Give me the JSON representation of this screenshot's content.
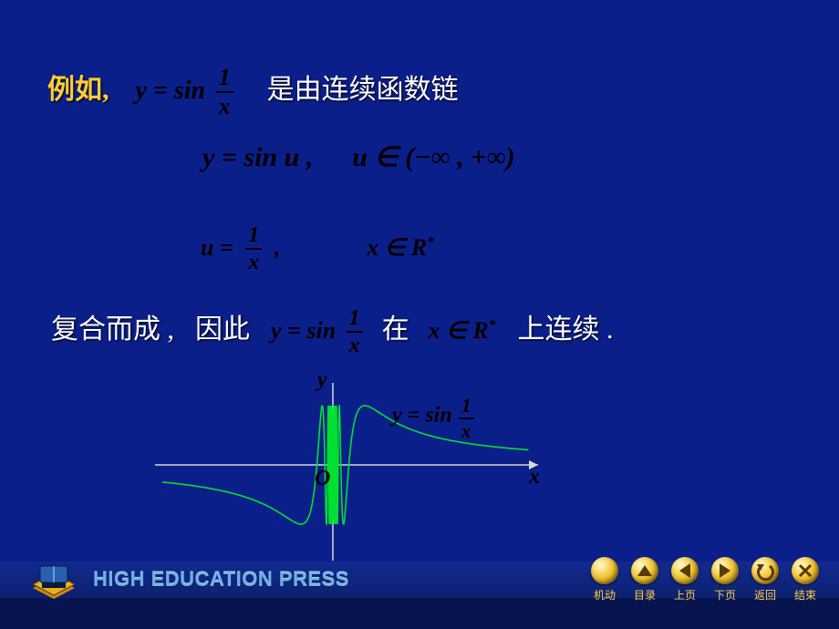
{
  "slide": {
    "bg_color": "#0b1f8a",
    "line1_prefix": "例如,",
    "line1_prefix_color": "#ffcc33",
    "line1_formula_prefix": "y = sin",
    "line1_frac_num": "1",
    "line1_frac_den": "x",
    "line1_suffix": "是由连续函数链",
    "line2_left": "y = sin u ,",
    "line2_right": "u ∈ (−∞ , +∞)",
    "line3_left_var": "u =",
    "line3_frac_num": "1",
    "line3_frac_den": "x",
    "line3_comma": ",",
    "line3_right": "x ∈ R",
    "line3_right_sup": "*",
    "line4_a": "复合而成 ,",
    "line4_b": "因此",
    "line4_formula_prefix": "y = sin",
    "line4_frac_num": "1",
    "line4_frac_den": "x",
    "line4_c": "在",
    "line4_d": "x ∈ R",
    "line4_d_sup": "*",
    "line4_e": "上连续 .",
    "graph_label_y": "y",
    "graph_label_x": "x",
    "graph_label_O": "O",
    "graph_caption_prefix": "y = sin",
    "graph_caption_num": "1",
    "graph_caption_den": "x",
    "graph_curve_color": "#00e030",
    "graph_axis_color": "#d8d8d8"
  },
  "footer": {
    "top_bg": "#122a8f",
    "bot_bg": "#07144f",
    "press": "HIGH EDUCATION PRESS",
    "press_color": "#6fb0e8",
    "logo_colors": {
      "box": "#e8b020",
      "book": "#2a5fb0",
      "shadow": "#0a1a3a"
    },
    "nav": [
      {
        "label": "机动",
        "circle_bg": "#e8b020",
        "circle_fg": "#5a3a05"
      },
      {
        "label": "目录",
        "icon": "up",
        "circle_bg": "#e8b020",
        "circle_fg": "#5a3a05"
      },
      {
        "label": "上页",
        "icon": "left",
        "circle_bg": "#e8b020",
        "circle_fg": "#5a3a05"
      },
      {
        "label": "下页",
        "icon": "right",
        "circle_bg": "#e8b020",
        "circle_fg": "#5a3a05"
      },
      {
        "label": "返回",
        "icon": "undo",
        "circle_bg": "#e8b020",
        "circle_fg": "#5a3a05"
      },
      {
        "label": "结束",
        "icon": "x",
        "circle_bg": "#e8b020",
        "circle_fg": "#5a3a05"
      }
    ],
    "nav_label_color": "#ffd040"
  }
}
